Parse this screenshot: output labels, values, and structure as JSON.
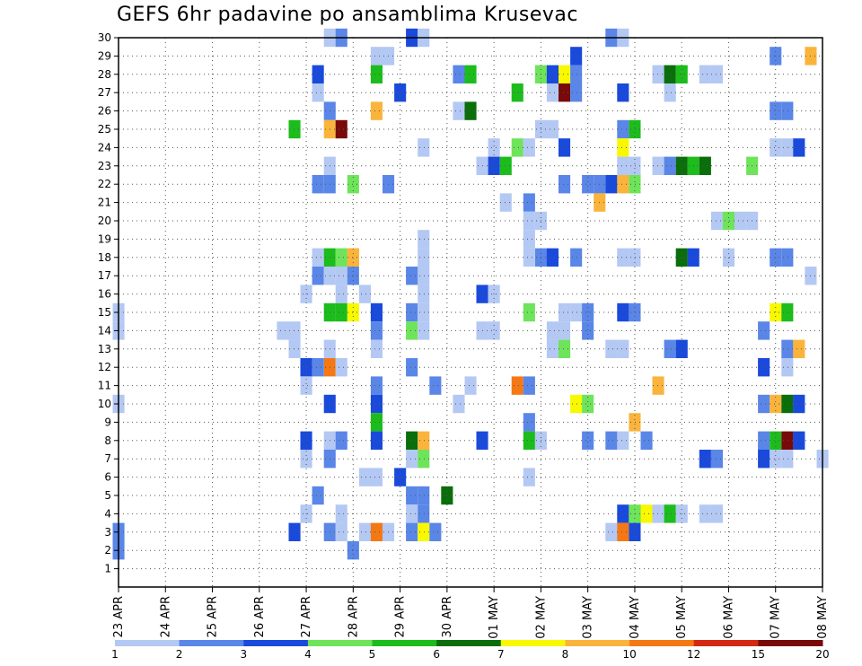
{
  "title": "GEFS 6hr padavine po ansamblima Krusevac",
  "chart_data": {
    "type": "heatmap",
    "title": "GEFS 6hr padavine po ansamblima Krusevac",
    "x_unit": "6h step",
    "x_range": [
      0,
      60
    ],
    "x_ticks": [
      {
        "label": "23 APR",
        "pos": 0
      },
      {
        "label": "24 APR",
        "pos": 4
      },
      {
        "label": "25 APR",
        "pos": 8
      },
      {
        "label": "26 APR",
        "pos": 12
      },
      {
        "label": "27 APR",
        "pos": 16
      },
      {
        "label": "28 APR",
        "pos": 20
      },
      {
        "label": "29 APR",
        "pos": 24
      },
      {
        "label": "30 APR",
        "pos": 28
      },
      {
        "label": "01 MAY",
        "pos": 32
      },
      {
        "label": "02 MAY",
        "pos": 36
      },
      {
        "label": "03 MAY",
        "pos": 40
      },
      {
        "label": "04 MAY",
        "pos": 44
      },
      {
        "label": "05 MAY",
        "pos": 48
      },
      {
        "label": "06 MAY",
        "pos": 52
      },
      {
        "label": "07 MAY",
        "pos": 56
      },
      {
        "label": "08 MAY",
        "pos": 60
      }
    ],
    "y_ticks": [
      1,
      2,
      3,
      4,
      5,
      6,
      7,
      8,
      9,
      10,
      11,
      12,
      13,
      14,
      15,
      16,
      17,
      18,
      19,
      20,
      21,
      22,
      23,
      24,
      25,
      26,
      27,
      28,
      29,
      30
    ],
    "ylim": [
      0,
      30
    ],
    "grid": true,
    "legend_labels": [
      "1",
      "2",
      "3",
      "4",
      "5",
      "6",
      "7",
      "8",
      "10",
      "12",
      "15",
      "20"
    ],
    "legend_colors": [
      "#b4c8f4",
      "#5a86e8",
      "#1a4adc",
      "#6ee45a",
      "#1cbc1c",
      "#0a6e0a",
      "#f8f800",
      "#fab43c",
      "#f47814",
      "#d42814",
      "#780a0a"
    ],
    "cells": [
      [
        18,
        30,
        1
      ],
      [
        19,
        30,
        2
      ],
      [
        25,
        30,
        3
      ],
      [
        26,
        30,
        1
      ],
      [
        42,
        30,
        2
      ],
      [
        43,
        30,
        1
      ],
      [
        22,
        29,
        1
      ],
      [
        23,
        29,
        1
      ],
      [
        39,
        29,
        3
      ],
      [
        56,
        29,
        2
      ],
      [
        59,
        29,
        8
      ],
      [
        17,
        28,
        3
      ],
      [
        22,
        28,
        5
      ],
      [
        29,
        28,
        2
      ],
      [
        30,
        28,
        5
      ],
      [
        36,
        28,
        4
      ],
      [
        37,
        28,
        3
      ],
      [
        38,
        28,
        7
      ],
      [
        39,
        28,
        2
      ],
      [
        46,
        28,
        1
      ],
      [
        47,
        28,
        6
      ],
      [
        48,
        28,
        5
      ],
      [
        50,
        28,
        1
      ],
      [
        51,
        28,
        1
      ],
      [
        17,
        27,
        1
      ],
      [
        24,
        27,
        3
      ],
      [
        34,
        27,
        5
      ],
      [
        37,
        27,
        1
      ],
      [
        38,
        27,
        11
      ],
      [
        39,
        27,
        2
      ],
      [
        43,
        27,
        3
      ],
      [
        47,
        27,
        1
      ],
      [
        18,
        26,
        2
      ],
      [
        22,
        26,
        8
      ],
      [
        29,
        26,
        1
      ],
      [
        30,
        26,
        6
      ],
      [
        56,
        26,
        2
      ],
      [
        57,
        26,
        2
      ],
      [
        15,
        25,
        5
      ],
      [
        18,
        25,
        8
      ],
      [
        19,
        25,
        11
      ],
      [
        36,
        25,
        1
      ],
      [
        37,
        25,
        1
      ],
      [
        43,
        25,
        2
      ],
      [
        44,
        25,
        5
      ],
      [
        26,
        24,
        1
      ],
      [
        32,
        24,
        1
      ],
      [
        34,
        24,
        4
      ],
      [
        35,
        24,
        1
      ],
      [
        38,
        24,
        3
      ],
      [
        43,
        24,
        7
      ],
      [
        56,
        24,
        1
      ],
      [
        57,
        24,
        1
      ],
      [
        58,
        24,
        3
      ],
      [
        18,
        23,
        1
      ],
      [
        31,
        23,
        1
      ],
      [
        32,
        23,
        3
      ],
      [
        33,
        23,
        5
      ],
      [
        43,
        23,
        1
      ],
      [
        44,
        23,
        1
      ],
      [
        46,
        23,
        1
      ],
      [
        47,
        23,
        2
      ],
      [
        48,
        23,
        6
      ],
      [
        49,
        23,
        5
      ],
      [
        50,
        23,
        6
      ],
      [
        54,
        23,
        4
      ],
      [
        17,
        22,
        2
      ],
      [
        18,
        22,
        2
      ],
      [
        20,
        22,
        4
      ],
      [
        23,
        22,
        2
      ],
      [
        38,
        22,
        2
      ],
      [
        40,
        22,
        2
      ],
      [
        41,
        22,
        2
      ],
      [
        42,
        22,
        3
      ],
      [
        43,
        22,
        8
      ],
      [
        44,
        22,
        4
      ],
      [
        33,
        21,
        1
      ],
      [
        35,
        21,
        2
      ],
      [
        41,
        21,
        8
      ],
      [
        35,
        20,
        1
      ],
      [
        36,
        20,
        1
      ],
      [
        51,
        20,
        1
      ],
      [
        52,
        20,
        4
      ],
      [
        53,
        20,
        1
      ],
      [
        54,
        20,
        1
      ],
      [
        26,
        19,
        1
      ],
      [
        35,
        19,
        1
      ],
      [
        17,
        18,
        1
      ],
      [
        18,
        18,
        5
      ],
      [
        19,
        18,
        4
      ],
      [
        20,
        18,
        8
      ],
      [
        36,
        18,
        2
      ],
      [
        37,
        18,
        3
      ],
      [
        39,
        18,
        2
      ],
      [
        48,
        18,
        6
      ],
      [
        49,
        18,
        3
      ],
      [
        52,
        18,
        1
      ],
      [
        20,
        18,
        8
      ],
      [
        26,
        18,
        1
      ],
      [
        35,
        18,
        1
      ],
      [
        43,
        18,
        1
      ],
      [
        44,
        18,
        1
      ],
      [
        56,
        18,
        2
      ],
      [
        57,
        18,
        2
      ],
      [
        17,
        17,
        2
      ],
      [
        18,
        17,
        1
      ],
      [
        19,
        17,
        1
      ],
      [
        20,
        17,
        2
      ],
      [
        26,
        17,
        1
      ],
      [
        25,
        17,
        2
      ],
      [
        59,
        17,
        1
      ],
      [
        16,
        16,
        1
      ],
      [
        19,
        16,
        1
      ],
      [
        21,
        16,
        1
      ],
      [
        26,
        16,
        1
      ],
      [
        31,
        16,
        3
      ],
      [
        32,
        16,
        1
      ],
      [
        0,
        15,
        1
      ],
      [
        18,
        15,
        5
      ],
      [
        19,
        15,
        5
      ],
      [
        20,
        15,
        7
      ],
      [
        22,
        15,
        3
      ],
      [
        25,
        15,
        2
      ],
      [
        26,
        15,
        1
      ],
      [
        35,
        15,
        4
      ],
      [
        38,
        15,
        1
      ],
      [
        39,
        15,
        1
      ],
      [
        40,
        15,
        2
      ],
      [
        43,
        15,
        3
      ],
      [
        44,
        15,
        2
      ],
      [
        56,
        15,
        7
      ],
      [
        57,
        15,
        5
      ],
      [
        0,
        14,
        1
      ],
      [
        14,
        14,
        1
      ],
      [
        15,
        14,
        1
      ],
      [
        22,
        14,
        2
      ],
      [
        25,
        14,
        4
      ],
      [
        26,
        14,
        1
      ],
      [
        31,
        14,
        1
      ],
      [
        32,
        14,
        1
      ],
      [
        37,
        14,
        1
      ],
      [
        38,
        14,
        1
      ],
      [
        40,
        14,
        2
      ],
      [
        55,
        14,
        2
      ],
      [
        15,
        13,
        1
      ],
      [
        18,
        13,
        1
      ],
      [
        22,
        13,
        1
      ],
      [
        37,
        13,
        1
      ],
      [
        38,
        13,
        4
      ],
      [
        42,
        13,
        1
      ],
      [
        43,
        13,
        1
      ],
      [
        47,
        13,
        2
      ],
      [
        48,
        13,
        3
      ],
      [
        57,
        13,
        2
      ],
      [
        58,
        13,
        8
      ],
      [
        16,
        12,
        3
      ],
      [
        17,
        12,
        2
      ],
      [
        18,
        12,
        9
      ],
      [
        19,
        12,
        1
      ],
      [
        25,
        12,
        2
      ],
      [
        55,
        12,
        3
      ],
      [
        57,
        12,
        1
      ],
      [
        16,
        11,
        1
      ],
      [
        22,
        11,
        2
      ],
      [
        27,
        11,
        2
      ],
      [
        30,
        11,
        1
      ],
      [
        34,
        11,
        9
      ],
      [
        35,
        11,
        2
      ],
      [
        46,
        11,
        8
      ],
      [
        0,
        10,
        1
      ],
      [
        18,
        10,
        3
      ],
      [
        22,
        10,
        3
      ],
      [
        29,
        10,
        1
      ],
      [
        39,
        10,
        7
      ],
      [
        40,
        10,
        4
      ],
      [
        55,
        10,
        2
      ],
      [
        56,
        10,
        8
      ],
      [
        57,
        10,
        6
      ],
      [
        58,
        10,
        3
      ],
      [
        22,
        9,
        5
      ],
      [
        35,
        9,
        2
      ],
      [
        44,
        9,
        8
      ],
      [
        16,
        8,
        3
      ],
      [
        18,
        8,
        1
      ],
      [
        19,
        8,
        2
      ],
      [
        22,
        8,
        3
      ],
      [
        25,
        8,
        6
      ],
      [
        26,
        8,
        8
      ],
      [
        31,
        8,
        3
      ],
      [
        35,
        8,
        5
      ],
      [
        36,
        8,
        1
      ],
      [
        40,
        8,
        2
      ],
      [
        42,
        8,
        2
      ],
      [
        43,
        8,
        1
      ],
      [
        45,
        8,
        2
      ],
      [
        55,
        8,
        2
      ],
      [
        56,
        8,
        5
      ],
      [
        57,
        8,
        11
      ],
      [
        58,
        8,
        3
      ],
      [
        16,
        7,
        1
      ],
      [
        18,
        7,
        2
      ],
      [
        25,
        7,
        1
      ],
      [
        26,
        7,
        4
      ],
      [
        50,
        7,
        3
      ],
      [
        51,
        7,
        2
      ],
      [
        55,
        7,
        3
      ],
      [
        56,
        7,
        1
      ],
      [
        57,
        7,
        1
      ],
      [
        60,
        7,
        1
      ],
      [
        21,
        6,
        1
      ],
      [
        22,
        6,
        1
      ],
      [
        24,
        6,
        3
      ],
      [
        35,
        6,
        1
      ],
      [
        17,
        5,
        2
      ],
      [
        25,
        5,
        2
      ],
      [
        26,
        5,
        2
      ],
      [
        28,
        5,
        6
      ],
      [
        16,
        4,
        1
      ],
      [
        19,
        4,
        1
      ],
      [
        25,
        4,
        1
      ],
      [
        26,
        4,
        2
      ],
      [
        43,
        4,
        3
      ],
      [
        44,
        4,
        4
      ],
      [
        45,
        4,
        7
      ],
      [
        46,
        4,
        1
      ],
      [
        47,
        4,
        5
      ],
      [
        48,
        4,
        1
      ],
      [
        50,
        4,
        1
      ],
      [
        51,
        4,
        1
      ],
      [
        0,
        3,
        2
      ],
      [
        15,
        3,
        3
      ],
      [
        18,
        3,
        2
      ],
      [
        19,
        3,
        1
      ],
      [
        21,
        3,
        1
      ],
      [
        22,
        3,
        9
      ],
      [
        23,
        3,
        1
      ],
      [
        25,
        3,
        2
      ],
      [
        26,
        3,
        7
      ],
      [
        27,
        3,
        2
      ],
      [
        42,
        3,
        1
      ],
      [
        43,
        3,
        9
      ],
      [
        44,
        3,
        3
      ],
      [
        0,
        2,
        2
      ],
      [
        20,
        2,
        2
      ]
    ]
  }
}
